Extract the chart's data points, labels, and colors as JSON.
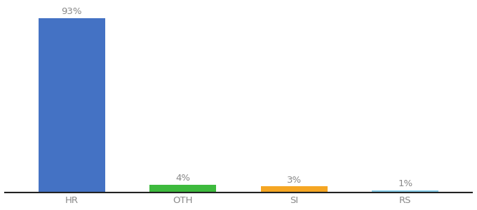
{
  "categories": [
    "HR",
    "OTH",
    "SI",
    "RS"
  ],
  "values": [
    93,
    4,
    3,
    1
  ],
  "labels": [
    "93%",
    "4%",
    "3%",
    "1%"
  ],
  "bar_colors": [
    "#4472c4",
    "#3dba3d",
    "#f5a623",
    "#87ceeb"
  ],
  "ylim": [
    0,
    100
  ],
  "background_color": "#ffffff",
  "label_fontsize": 9.5,
  "tick_fontsize": 9.5,
  "bar_width": 0.6,
  "label_color": "#888888",
  "tick_color": "#888888",
  "spine_color": "#222222"
}
